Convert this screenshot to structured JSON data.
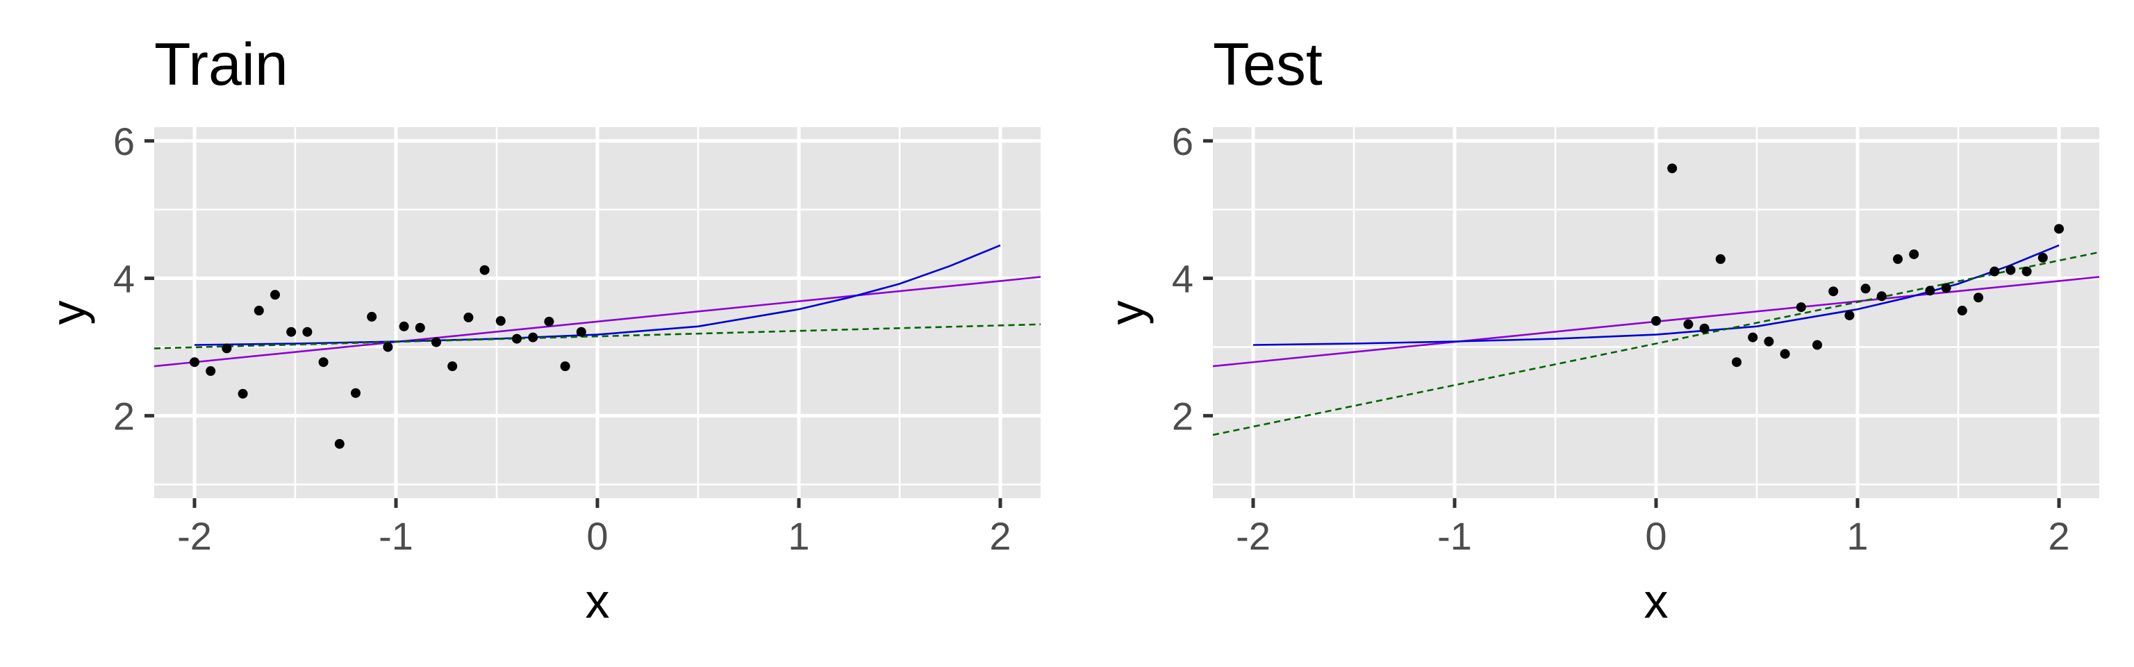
{
  "colors": {
    "panel_bg": "#e5e5e5",
    "grid": "#ffffff",
    "points": "#000000",
    "series_linear": "#8c00d6",
    "series_curve": "#0000d6",
    "series_dashed": "#006400"
  },
  "chart_data": [
    {
      "type": "scatter",
      "title": "Train",
      "xlabel": "x",
      "ylabel": "y",
      "xlim": [
        -2.2,
        2.2
      ],
      "ylim": [
        0.8,
        6.2
      ],
      "x_ticks": [
        -2,
        -1,
        0,
        1,
        2
      ],
      "x_tick_labels": [
        "-2",
        "-1",
        "0",
        "1",
        "2"
      ],
      "y_ticks": [
        2,
        4,
        6
      ],
      "y_tick_labels": [
        "2",
        "4",
        "6"
      ],
      "grid": true,
      "legend": "none",
      "points": [
        {
          "x": -2.0,
          "y": 2.78
        },
        {
          "x": -1.92,
          "y": 2.65
        },
        {
          "x": -1.84,
          "y": 2.98
        },
        {
          "x": -1.76,
          "y": 2.32
        },
        {
          "x": -1.68,
          "y": 3.53
        },
        {
          "x": -1.6,
          "y": 3.76
        },
        {
          "x": -1.52,
          "y": 3.22
        },
        {
          "x": -1.44,
          "y": 3.22
        },
        {
          "x": -1.36,
          "y": 2.78
        },
        {
          "x": -1.28,
          "y": 1.59
        },
        {
          "x": -1.2,
          "y": 2.33
        },
        {
          "x": -1.12,
          "y": 3.44
        },
        {
          "x": -1.04,
          "y": 3.0
        },
        {
          "x": -0.96,
          "y": 3.3
        },
        {
          "x": -0.88,
          "y": 3.28
        },
        {
          "x": -0.8,
          "y": 3.07
        },
        {
          "x": -0.72,
          "y": 2.72
        },
        {
          "x": -0.64,
          "y": 3.43
        },
        {
          "x": -0.56,
          "y": 4.12
        },
        {
          "x": -0.48,
          "y": 3.38
        },
        {
          "x": -0.4,
          "y": 3.12
        },
        {
          "x": -0.32,
          "y": 3.14
        },
        {
          "x": -0.24,
          "y": 3.37
        },
        {
          "x": -0.16,
          "y": 2.72
        },
        {
          "x": -0.08,
          "y": 3.22
        }
      ],
      "series": [
        {
          "style": "linear",
          "x": [
            -2.2,
            2.2
          ],
          "y": [
            2.72,
            4.02
          ]
        },
        {
          "style": "curve",
          "x": [
            -2.0,
            -1.5,
            -1.0,
            -0.5,
            0.0,
            0.5,
            1.0,
            1.25,
            1.5,
            1.75,
            2.0
          ],
          "y": [
            3.03,
            3.05,
            3.08,
            3.12,
            3.18,
            3.3,
            3.55,
            3.72,
            3.92,
            4.18,
            4.48
          ]
        },
        {
          "style": "dashed",
          "x": [
            -2.2,
            2.2
          ],
          "y": [
            2.98,
            3.33
          ]
        }
      ]
    },
    {
      "type": "scatter",
      "title": "Test",
      "xlabel": "x",
      "ylabel": "y",
      "xlim": [
        -2.2,
        2.2
      ],
      "ylim": [
        0.8,
        6.2
      ],
      "x_ticks": [
        -2,
        -1,
        0,
        1,
        2
      ],
      "x_tick_labels": [
        "-2",
        "-1",
        "0",
        "1",
        "2"
      ],
      "y_ticks": [
        2,
        4,
        6
      ],
      "y_tick_labels": [
        "2",
        "4",
        "6"
      ],
      "grid": true,
      "legend": "none",
      "points": [
        {
          "x": 0.0,
          "y": 3.38
        },
        {
          "x": 0.08,
          "y": 5.6
        },
        {
          "x": 0.16,
          "y": 3.33
        },
        {
          "x": 0.24,
          "y": 3.27
        },
        {
          "x": 0.32,
          "y": 4.28
        },
        {
          "x": 0.4,
          "y": 2.78
        },
        {
          "x": 0.48,
          "y": 3.14
        },
        {
          "x": 0.56,
          "y": 3.08
        },
        {
          "x": 0.64,
          "y": 2.9
        },
        {
          "x": 0.72,
          "y": 3.58
        },
        {
          "x": 0.8,
          "y": 3.03
        },
        {
          "x": 0.88,
          "y": 3.81
        },
        {
          "x": 0.96,
          "y": 3.46
        },
        {
          "x": 1.04,
          "y": 3.85
        },
        {
          "x": 1.12,
          "y": 3.74
        },
        {
          "x": 1.2,
          "y": 4.28
        },
        {
          "x": 1.28,
          "y": 4.35
        },
        {
          "x": 1.36,
          "y": 3.82
        },
        {
          "x": 1.44,
          "y": 3.86
        },
        {
          "x": 1.52,
          "y": 3.53
        },
        {
          "x": 1.6,
          "y": 3.72
        },
        {
          "x": 1.68,
          "y": 4.1
        },
        {
          "x": 1.76,
          "y": 4.12
        },
        {
          "x": 1.84,
          "y": 4.1
        },
        {
          "x": 1.92,
          "y": 4.3
        },
        {
          "x": 2.0,
          "y": 4.72
        }
      ],
      "series": [
        {
          "style": "linear",
          "x": [
            -2.2,
            2.2
          ],
          "y": [
            2.72,
            4.02
          ]
        },
        {
          "style": "curve",
          "x": [
            -2.0,
            -1.5,
            -1.0,
            -0.5,
            0.0,
            0.5,
            1.0,
            1.25,
            1.5,
            1.75,
            2.0
          ],
          "y": [
            3.03,
            3.05,
            3.08,
            3.12,
            3.18,
            3.3,
            3.55,
            3.72,
            3.92,
            4.18,
            4.48
          ]
        },
        {
          "style": "dashed",
          "x": [
            -2.2,
            2.2
          ],
          "y": [
            1.72,
            4.38
          ]
        }
      ]
    }
  ]
}
